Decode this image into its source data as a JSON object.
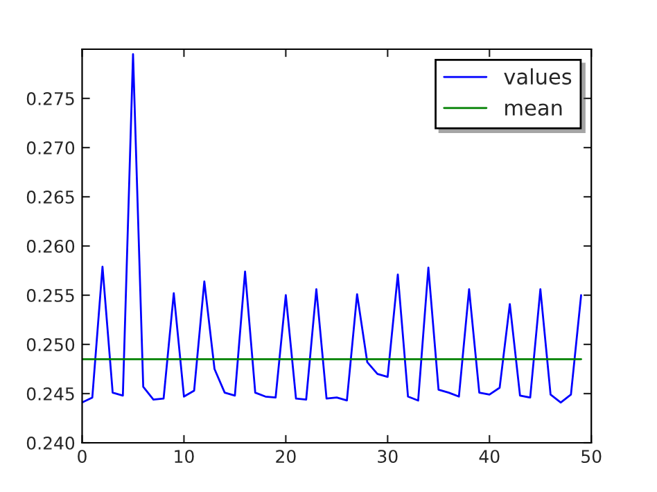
{
  "chart_data": {
    "type": "line",
    "x": [
      0,
      1,
      2,
      3,
      4,
      5,
      6,
      7,
      8,
      9,
      10,
      11,
      12,
      13,
      14,
      15,
      16,
      17,
      18,
      19,
      20,
      21,
      22,
      23,
      24,
      25,
      26,
      27,
      28,
      29,
      30,
      31,
      32,
      33,
      34,
      35,
      36,
      37,
      38,
      39,
      40,
      41,
      42,
      43,
      44,
      45,
      46,
      47,
      48,
      49
    ],
    "series": [
      {
        "name": "values",
        "color": "#0000ff",
        "values": [
          0.2441,
          0.2446,
          0.2579,
          0.2451,
          0.2448,
          0.2795,
          0.2457,
          0.2444,
          0.2445,
          0.2552,
          0.2447,
          0.2453,
          0.2564,
          0.2475,
          0.2451,
          0.2448,
          0.2574,
          0.2451,
          0.2447,
          0.2446,
          0.255,
          0.2445,
          0.2444,
          0.2556,
          0.2445,
          0.2446,
          0.2443,
          0.2551,
          0.2482,
          0.247,
          0.2467,
          0.2571,
          0.2447,
          0.2443,
          0.2578,
          0.2454,
          0.2451,
          0.2447,
          0.2556,
          0.2451,
          0.2449,
          0.2456,
          0.2541,
          0.2448,
          0.2446,
          0.2556,
          0.2449,
          0.2441,
          0.2449,
          0.255
        ]
      },
      {
        "name": "mean",
        "color": "#008000",
        "x": [
          0,
          49
        ],
        "values": [
          0.2485,
          0.2485
        ]
      }
    ],
    "xlim": [
      0,
      50
    ],
    "xticks": [
      0,
      10,
      20,
      30,
      40,
      50
    ],
    "ylim": [
      0.24,
      0.28
    ],
    "yticks": [
      {
        "value": 0.24,
        "label": "0.240"
      },
      {
        "value": 0.245,
        "label": "0.245"
      },
      {
        "value": 0.25,
        "label": "0.250"
      },
      {
        "value": 0.255,
        "label": "0.255"
      },
      {
        "value": 0.26,
        "label": "0.260"
      },
      {
        "value": 0.265,
        "label": "0.265"
      },
      {
        "value": 0.27,
        "label": "0.270"
      },
      {
        "value": 0.275,
        "label": "0.275"
      }
    ],
    "legend": "top right",
    "grid": false,
    "marker": "none",
    "line_style": "solid"
  }
}
